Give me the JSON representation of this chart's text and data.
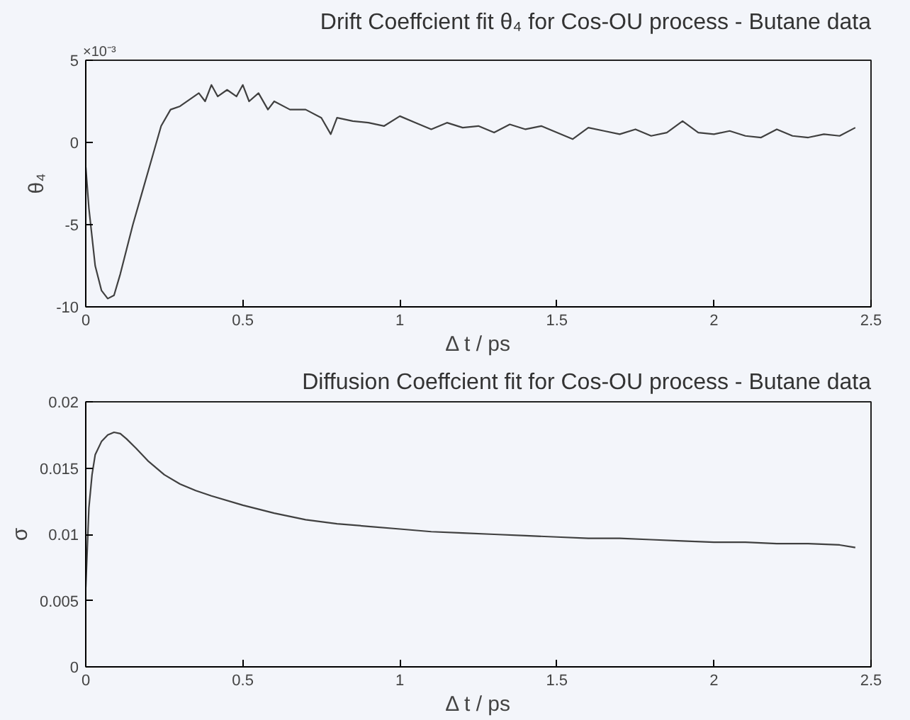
{
  "chart_data": [
    {
      "type": "line",
      "title": "Drift Coeffcient fit θ₄ for Cos-OU process - Butane data",
      "xlabel": "Δ t / ps",
      "ylabel": "θ₄",
      "annotations": [
        "×10⁻³"
      ],
      "xlim": [
        0,
        2.5
      ],
      "xticks": [
        0,
        0.5,
        1,
        1.5,
        2,
        2.5
      ],
      "ylim": [
        -10,
        5
      ],
      "yticks": [
        -10,
        -5,
        0,
        5
      ],
      "series": [
        {
          "color": "#404040",
          "x": [
            0,
            0.01,
            0.03,
            0.05,
            0.07,
            0.09,
            0.11,
            0.13,
            0.15,
            0.18,
            0.21,
            0.24,
            0.27,
            0.3,
            0.33,
            0.36,
            0.38,
            0.4,
            0.42,
            0.45,
            0.48,
            0.5,
            0.52,
            0.55,
            0.58,
            0.6,
            0.65,
            0.7,
            0.75,
            0.78,
            0.8,
            0.85,
            0.9,
            0.95,
            1.0,
            1.05,
            1.1,
            1.15,
            1.2,
            1.25,
            1.3,
            1.35,
            1.4,
            1.45,
            1.5,
            1.55,
            1.6,
            1.65,
            1.7,
            1.75,
            1.8,
            1.85,
            1.9,
            1.95,
            2.0,
            2.05,
            2.1,
            2.15,
            2.2,
            2.25,
            2.3,
            2.35,
            2.4,
            2.45
          ],
          "values": [
            -1.5,
            -4,
            -7.5,
            -9,
            -9.5,
            -9.3,
            -8,
            -6.5,
            -5,
            -3,
            -1,
            1,
            2,
            2.2,
            2.6,
            3,
            2.5,
            3.5,
            2.8,
            3.2,
            2.8,
            3.5,
            2.5,
            3,
            2,
            2.5,
            2,
            2,
            1.5,
            0.5,
            1.5,
            1.3,
            1.2,
            1,
            1.6,
            1.2,
            0.8,
            1.2,
            0.9,
            1,
            0.6,
            1.1,
            0.8,
            1,
            0.6,
            0.2,
            0.9,
            0.7,
            0.5,
            0.8,
            0.4,
            0.6,
            1.3,
            0.6,
            0.5,
            0.7,
            0.4,
            0.3,
            0.8,
            0.4,
            0.3,
            0.5,
            0.4,
            0.9
          ]
        }
      ]
    },
    {
      "type": "line",
      "title": "Diffusion Coeffcient fit for Cos-OU process - Butane data",
      "xlabel": "Δ t / ps",
      "ylabel": "σ",
      "xlim": [
        0,
        2.5
      ],
      "xticks": [
        0,
        0.5,
        1,
        1.5,
        2,
        2.5
      ],
      "ylim": [
        0,
        0.02
      ],
      "yticks": [
        0,
        0.005,
        0.01,
        0.015,
        0.02
      ],
      "series": [
        {
          "color": "#404040",
          "x": [
            0,
            0.005,
            0.01,
            0.02,
            0.03,
            0.05,
            0.07,
            0.09,
            0.11,
            0.13,
            0.16,
            0.2,
            0.25,
            0.3,
            0.35,
            0.4,
            0.5,
            0.6,
            0.7,
            0.8,
            0.9,
            1.0,
            1.1,
            1.2,
            1.3,
            1.4,
            1.5,
            1.6,
            1.7,
            1.8,
            1.9,
            2.0,
            2.1,
            2.2,
            2.3,
            2.4,
            2.45
          ],
          "values": [
            0.006,
            0.009,
            0.012,
            0.0145,
            0.016,
            0.017,
            0.0175,
            0.0177,
            0.0176,
            0.0172,
            0.0165,
            0.0155,
            0.0145,
            0.0138,
            0.0133,
            0.0129,
            0.0122,
            0.0116,
            0.0111,
            0.0108,
            0.0106,
            0.0104,
            0.0102,
            0.0101,
            0.01,
            0.0099,
            0.0098,
            0.0097,
            0.0097,
            0.0096,
            0.0095,
            0.0094,
            0.0094,
            0.0093,
            0.0093,
            0.0092,
            0.009
          ]
        }
      ]
    }
  ]
}
